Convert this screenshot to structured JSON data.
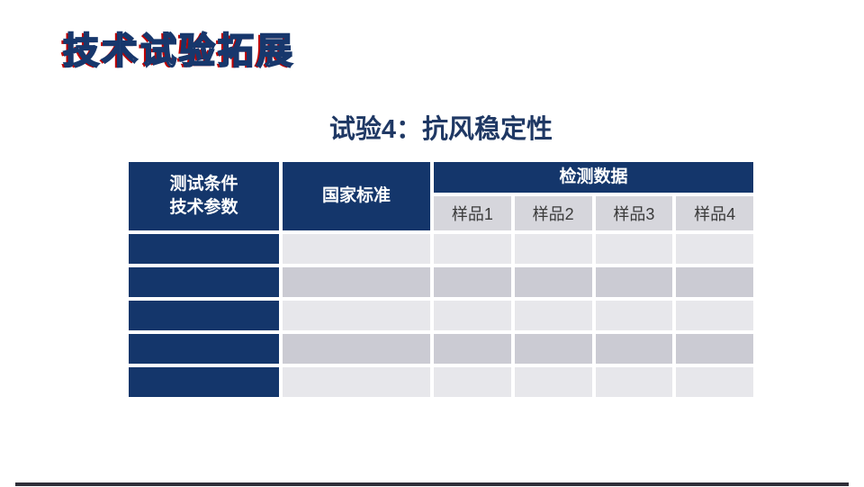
{
  "slide": {
    "title": "技术试验拓展",
    "subtitle": "试验4：抗风稳定性"
  },
  "table": {
    "header": {
      "col1_line1": "测试条件",
      "col1_line2": "技术参数",
      "col2": "国家标准",
      "group": "检测数据",
      "samples": [
        "样品1",
        "样品2",
        "样品3",
        "样品4"
      ]
    },
    "body_row_count": 5,
    "body_cols_per_row": 6,
    "body_cells_empty": true
  },
  "colors": {
    "header_navy": "#14366b",
    "subtitle_navy": "#1f3864",
    "title_outline_navy": "#17376c",
    "title_shadow_red": "#c00000",
    "subheader_gray": "#d6d6dc",
    "row_light_gray": "#e7e7eb",
    "row_dark_gray": "#cbcbd3",
    "bottom_bar": "#2e2e38"
  }
}
